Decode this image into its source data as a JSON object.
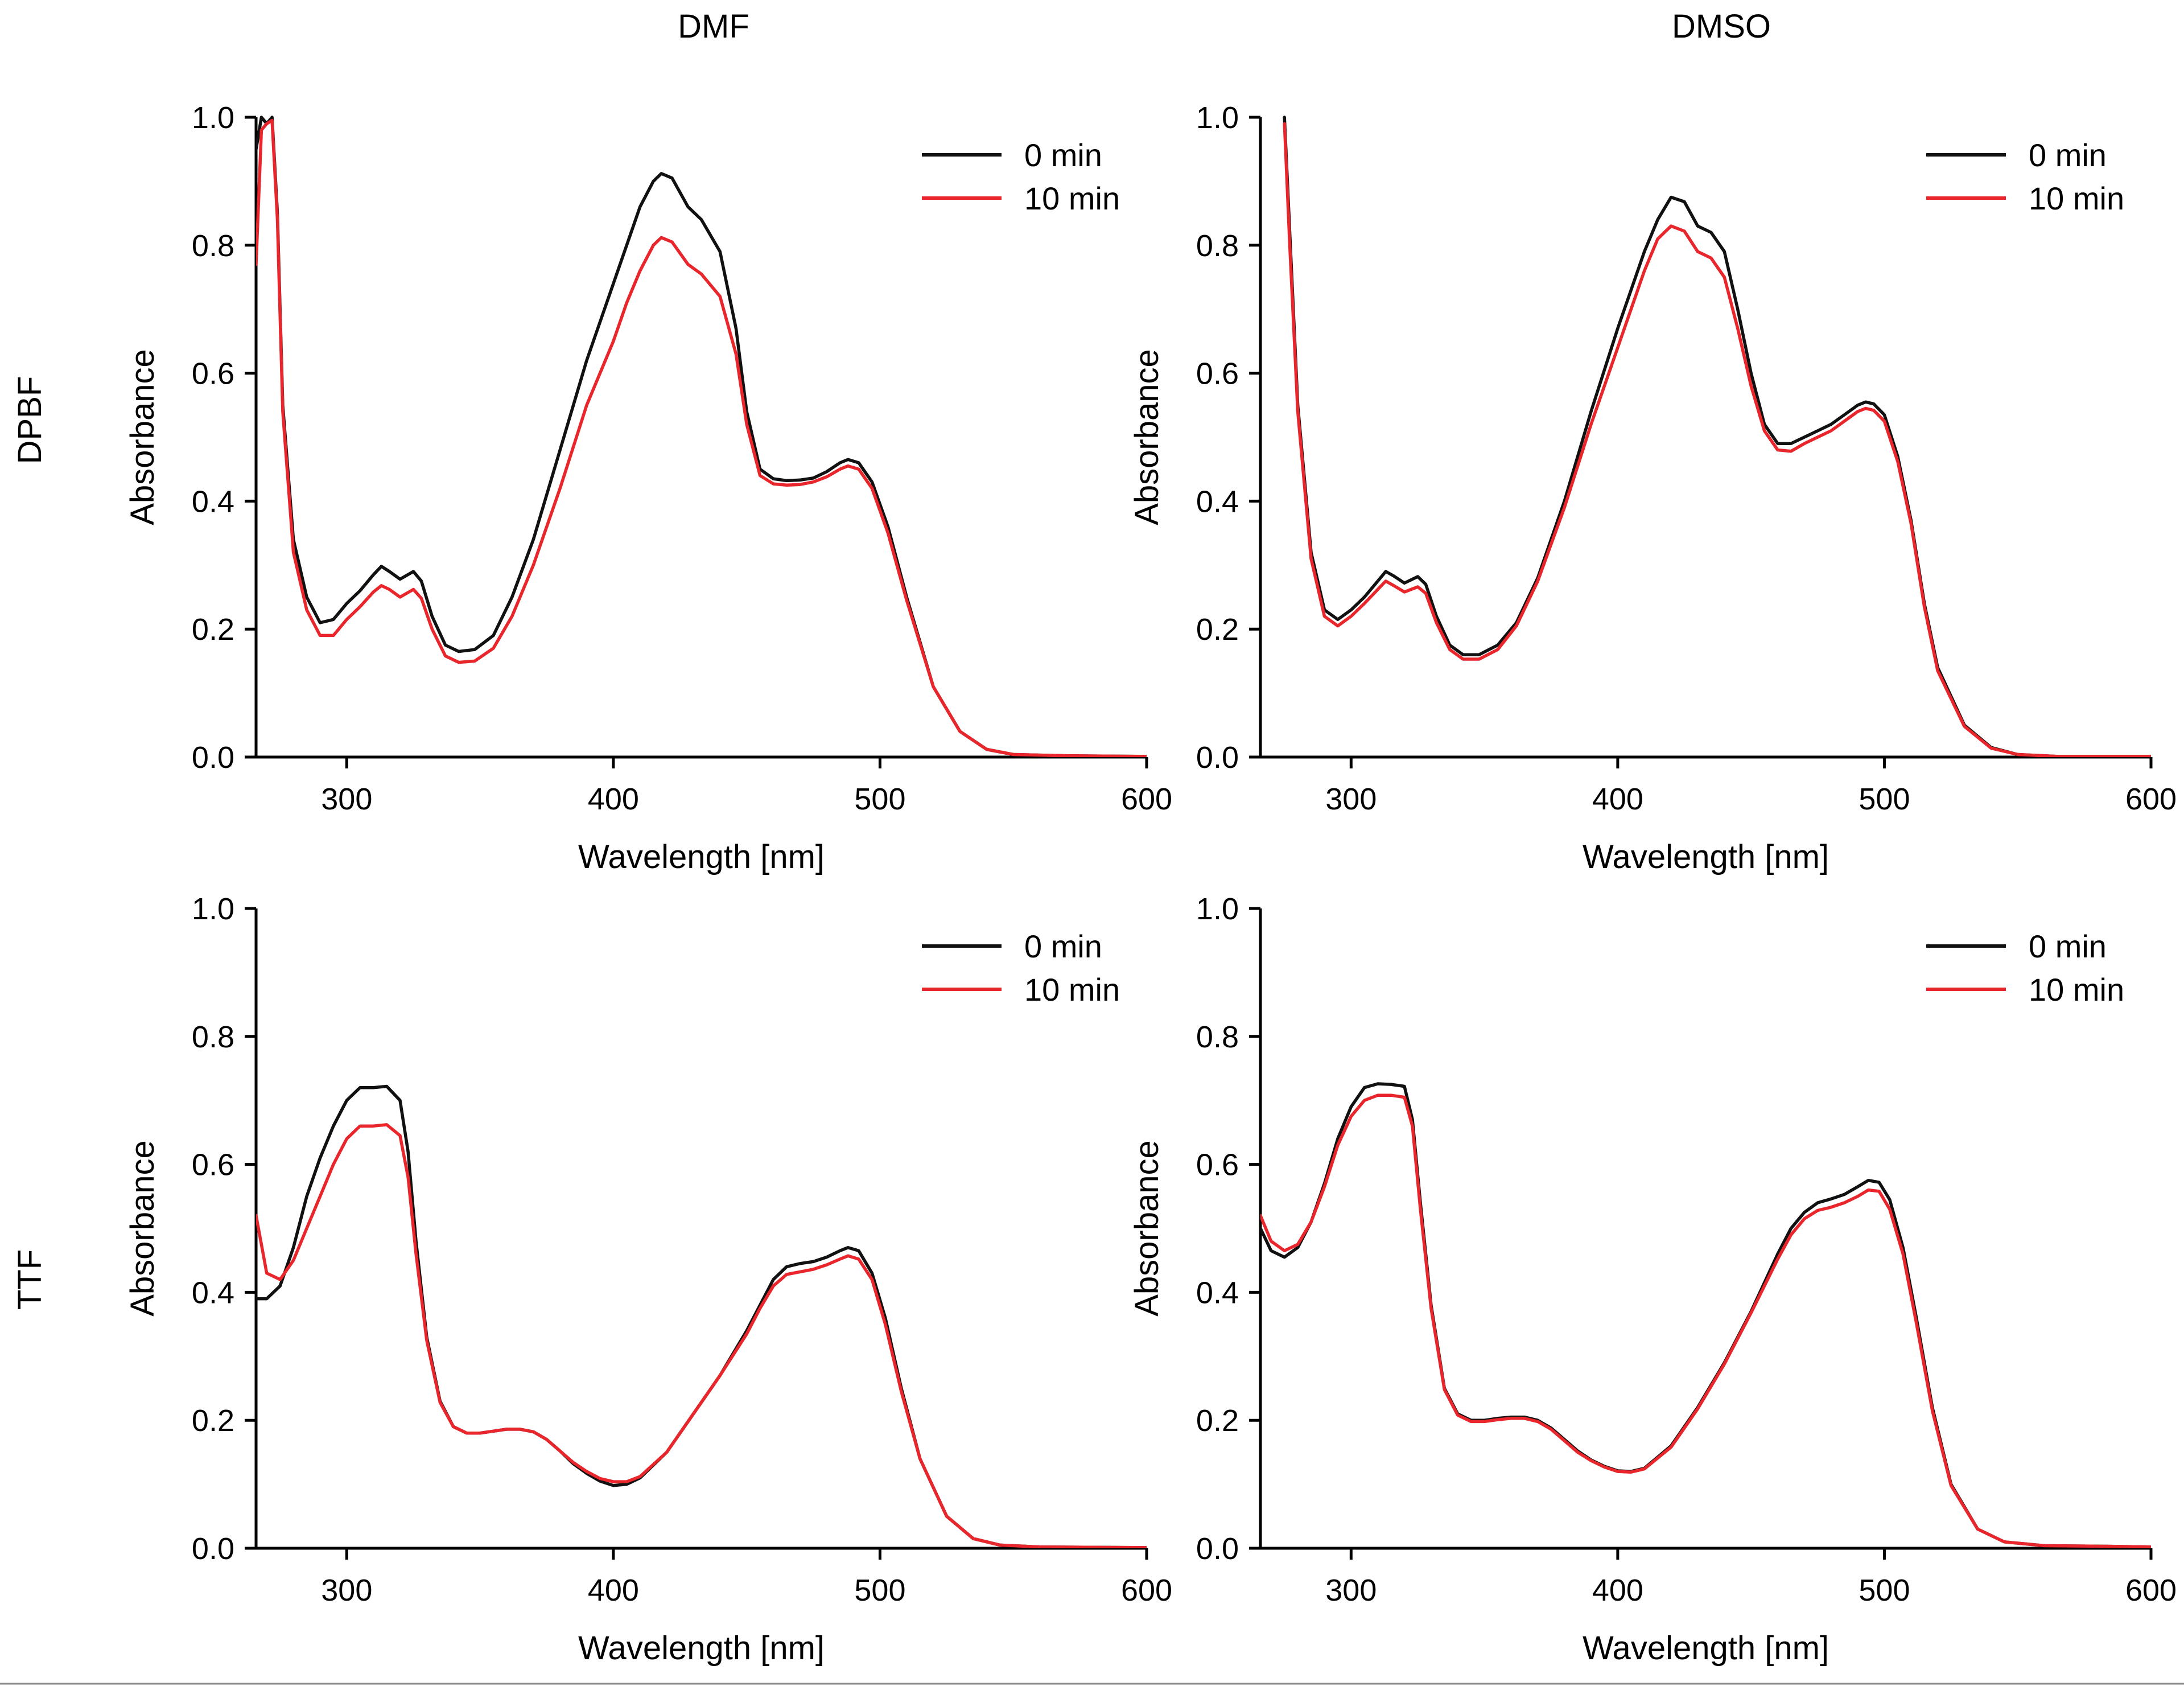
{
  "figure": {
    "column_titles": [
      "DMF",
      "DMSO"
    ],
    "row_titles": [
      "DPBF",
      "TTF"
    ],
    "series_colors": {
      "0 min": "#111111",
      "10 min": "#e8262b"
    }
  },
  "chart_data": [
    {
      "type": "line",
      "row": "DPBF",
      "column": "DMF",
      "xlabel": "Wavelength [nm]",
      "ylabel": "Absorbance",
      "xlim": [
        266,
        600
      ],
      "ylim": [
        0.0,
        1.0
      ],
      "xticks": [
        300,
        400,
        500,
        600
      ],
      "xtick_labels": [
        "300",
        "400",
        "500",
        "600"
      ],
      "yticks": [
        0.0,
        0.2,
        0.4,
        0.6,
        0.8,
        1.0
      ],
      "ytick_labels": [
        "0.0",
        "0.2",
        "0.4",
        "0.6",
        "0.8",
        "1.0"
      ],
      "legend": [
        "0 min",
        "10 min"
      ],
      "legend_position": "top-right",
      "series": [
        {
          "name": "0 min",
          "color": "#111111",
          "x": [
            266,
            268,
            270,
            272,
            274,
            276,
            280,
            285,
            290,
            295,
            300,
            305,
            310,
            313,
            316,
            320,
            325,
            328,
            332,
            337,
            342,
            348,
            355,
            362,
            370,
            380,
            390,
            400,
            405,
            410,
            415,
            418,
            422,
            428,
            433,
            440,
            446,
            450,
            455,
            460,
            465,
            470,
            475,
            480,
            485,
            488,
            492,
            497,
            503,
            510,
            520,
            530,
            540,
            550,
            570,
            600
          ],
          "y": [
            0.95,
            1.0,
            0.99,
            1.0,
            0.85,
            0.55,
            0.34,
            0.25,
            0.21,
            0.215,
            0.24,
            0.26,
            0.285,
            0.298,
            0.29,
            0.278,
            0.29,
            0.275,
            0.22,
            0.175,
            0.165,
            0.168,
            0.19,
            0.25,
            0.34,
            0.48,
            0.62,
            0.74,
            0.8,
            0.86,
            0.9,
            0.912,
            0.905,
            0.86,
            0.84,
            0.79,
            0.67,
            0.54,
            0.45,
            0.435,
            0.432,
            0.433,
            0.436,
            0.446,
            0.46,
            0.465,
            0.46,
            0.43,
            0.36,
            0.25,
            0.11,
            0.04,
            0.012,
            0.004,
            0.002,
            0.001
          ]
        },
        {
          "name": "10 min",
          "color": "#e8262b",
          "x": [
            266,
            268,
            270,
            272,
            274,
            276,
            280,
            285,
            290,
            295,
            300,
            305,
            310,
            313,
            316,
            320,
            325,
            328,
            332,
            337,
            342,
            348,
            355,
            362,
            370,
            380,
            390,
            400,
            405,
            410,
            415,
            418,
            422,
            428,
            433,
            440,
            446,
            450,
            455,
            460,
            465,
            470,
            475,
            480,
            485,
            488,
            492,
            497,
            503,
            510,
            520,
            530,
            540,
            550,
            570,
            600
          ],
          "y": [
            0.77,
            0.98,
            0.99,
            0.995,
            0.84,
            0.54,
            0.32,
            0.23,
            0.19,
            0.19,
            0.215,
            0.235,
            0.258,
            0.268,
            0.262,
            0.25,
            0.262,
            0.248,
            0.2,
            0.158,
            0.148,
            0.15,
            0.17,
            0.22,
            0.3,
            0.42,
            0.55,
            0.65,
            0.71,
            0.76,
            0.8,
            0.812,
            0.805,
            0.77,
            0.755,
            0.72,
            0.63,
            0.52,
            0.44,
            0.427,
            0.425,
            0.426,
            0.43,
            0.438,
            0.45,
            0.455,
            0.45,
            0.42,
            0.35,
            0.245,
            0.11,
            0.04,
            0.012,
            0.004,
            0.002,
            0.001
          ]
        }
      ]
    },
    {
      "type": "line",
      "row": "DPBF",
      "column": "DMSO",
      "xlabel": "Wavelength [nm]",
      "ylabel": "Absorbance",
      "xlim": [
        266,
        600
      ],
      "ylim": [
        0.0,
        1.0
      ],
      "xticks": [
        300,
        400,
        500,
        600
      ],
      "xtick_labels": [
        "300",
        "400",
        "500",
        "600"
      ],
      "yticks": [
        0.0,
        0.2,
        0.4,
        0.6,
        0.8,
        1.0
      ],
      "ytick_labels": [
        "0.0",
        "0.2",
        "0.4",
        "0.6",
        "0.8",
        "1.0"
      ],
      "legend": [
        "0 min",
        "10 min"
      ],
      "legend_position": "top-right",
      "series": [
        {
          "name": "0 min",
          "color": "#111111",
          "x": [
            275,
            277,
            280,
            285,
            290,
            295,
            300,
            305,
            310,
            313,
            316,
            320,
            325,
            328,
            332,
            337,
            342,
            348,
            355,
            362,
            370,
            380,
            390,
            400,
            405,
            410,
            415,
            420,
            425,
            430,
            435,
            440,
            445,
            450,
            455,
            460,
            465,
            470,
            475,
            480,
            485,
            490,
            493,
            496,
            500,
            505,
            510,
            515,
            520,
            530,
            540,
            550,
            565,
            600
          ],
          "y": [
            1.0,
            0.82,
            0.55,
            0.32,
            0.23,
            0.215,
            0.23,
            0.25,
            0.275,
            0.29,
            0.283,
            0.272,
            0.282,
            0.27,
            0.22,
            0.175,
            0.16,
            0.16,
            0.175,
            0.21,
            0.28,
            0.4,
            0.54,
            0.67,
            0.73,
            0.79,
            0.84,
            0.875,
            0.868,
            0.83,
            0.82,
            0.79,
            0.7,
            0.6,
            0.52,
            0.49,
            0.49,
            0.5,
            0.51,
            0.52,
            0.535,
            0.55,
            0.555,
            0.552,
            0.535,
            0.47,
            0.37,
            0.24,
            0.14,
            0.05,
            0.015,
            0.004,
            0.001,
            0.001
          ]
        },
        {
          "name": "10 min",
          "color": "#e8262b",
          "x": [
            275,
            277,
            280,
            285,
            290,
            295,
            300,
            305,
            310,
            313,
            316,
            320,
            325,
            328,
            332,
            337,
            342,
            348,
            355,
            362,
            370,
            380,
            390,
            400,
            405,
            410,
            415,
            420,
            425,
            430,
            435,
            440,
            445,
            450,
            455,
            460,
            465,
            470,
            475,
            480,
            485,
            490,
            493,
            496,
            500,
            505,
            510,
            515,
            520,
            530,
            540,
            550,
            565,
            600
          ],
          "y": [
            0.99,
            0.8,
            0.54,
            0.31,
            0.22,
            0.205,
            0.22,
            0.24,
            0.262,
            0.275,
            0.268,
            0.258,
            0.266,
            0.256,
            0.21,
            0.168,
            0.153,
            0.153,
            0.168,
            0.205,
            0.275,
            0.39,
            0.52,
            0.64,
            0.7,
            0.76,
            0.81,
            0.83,
            0.822,
            0.79,
            0.78,
            0.75,
            0.67,
            0.58,
            0.51,
            0.48,
            0.478,
            0.49,
            0.5,
            0.51,
            0.525,
            0.54,
            0.545,
            0.542,
            0.525,
            0.462,
            0.365,
            0.235,
            0.135,
            0.048,
            0.014,
            0.004,
            0.001,
            0.001
          ]
        }
      ]
    },
    {
      "type": "line",
      "row": "TTF",
      "column": "DMF",
      "xlabel": "Wavelength [nm]",
      "ylabel": "Absorbance",
      "xlim": [
        266,
        600
      ],
      "ylim": [
        0.0,
        1.0
      ],
      "xticks": [
        300,
        400,
        500,
        600
      ],
      "xtick_labels": [
        "300",
        "400",
        "500",
        "600"
      ],
      "yticks": [
        0.0,
        0.2,
        0.4,
        0.6,
        0.8,
        1.0
      ],
      "ytick_labels": [
        "0.0",
        "0.2",
        "0.4",
        "0.6",
        "0.8",
        "1.0"
      ],
      "legend": [
        "0 min",
        "10 min"
      ],
      "legend_position": "top-right",
      "series": [
        {
          "name": "0 min",
          "color": "#111111",
          "x": [
            266,
            270,
            275,
            280,
            285,
            290,
            295,
            300,
            305,
            310,
            315,
            320,
            323,
            326,
            330,
            335,
            340,
            345,
            350,
            355,
            360,
            365,
            370,
            375,
            380,
            385,
            390,
            395,
            400,
            405,
            410,
            420,
            430,
            440,
            450,
            455,
            460,
            465,
            470,
            475,
            480,
            485,
            488,
            492,
            497,
            502,
            508,
            515,
            525,
            535,
            545,
            560,
            600
          ],
          "y": [
            0.39,
            0.39,
            0.41,
            0.47,
            0.55,
            0.61,
            0.66,
            0.7,
            0.72,
            0.72,
            0.722,
            0.7,
            0.62,
            0.48,
            0.33,
            0.23,
            0.19,
            0.18,
            0.18,
            0.183,
            0.186,
            0.186,
            0.182,
            0.17,
            0.152,
            0.132,
            0.117,
            0.105,
            0.098,
            0.1,
            0.11,
            0.15,
            0.21,
            0.27,
            0.34,
            0.38,
            0.42,
            0.44,
            0.445,
            0.448,
            0.455,
            0.465,
            0.47,
            0.465,
            0.43,
            0.36,
            0.25,
            0.14,
            0.05,
            0.015,
            0.005,
            0.002,
            0.001
          ]
        },
        {
          "name": "10 min",
          "color": "#e8262b",
          "x": [
            266,
            270,
            275,
            280,
            285,
            290,
            295,
            300,
            305,
            310,
            315,
            320,
            323,
            326,
            330,
            335,
            340,
            345,
            350,
            355,
            360,
            365,
            370,
            375,
            380,
            385,
            390,
            395,
            400,
            405,
            410,
            420,
            430,
            440,
            450,
            455,
            460,
            465,
            470,
            475,
            480,
            485,
            488,
            492,
            497,
            502,
            508,
            515,
            525,
            535,
            545,
            560,
            600
          ],
          "y": [
            0.52,
            0.43,
            0.42,
            0.45,
            0.5,
            0.55,
            0.6,
            0.64,
            0.66,
            0.66,
            0.662,
            0.645,
            0.58,
            0.46,
            0.325,
            0.228,
            0.19,
            0.18,
            0.18,
            0.183,
            0.186,
            0.186,
            0.182,
            0.17,
            0.152,
            0.134,
            0.12,
            0.109,
            0.104,
            0.104,
            0.112,
            0.15,
            0.21,
            0.27,
            0.335,
            0.375,
            0.41,
            0.428,
            0.432,
            0.436,
            0.443,
            0.452,
            0.457,
            0.452,
            0.42,
            0.35,
            0.245,
            0.14,
            0.05,
            0.015,
            0.005,
            0.002,
            0.001
          ]
        }
      ]
    },
    {
      "type": "line",
      "row": "TTF",
      "column": "DMSO",
      "xlabel": "Wavelength [nm]",
      "ylabel": "Absorbance",
      "xlim": [
        266,
        600
      ],
      "ylim": [
        0.0,
        1.0
      ],
      "xticks": [
        300,
        400,
        500,
        600
      ],
      "xtick_labels": [
        "300",
        "400",
        "500",
        "600"
      ],
      "yticks": [
        0.0,
        0.2,
        0.4,
        0.6,
        0.8,
        1.0
      ],
      "ytick_labels": [
        "0.0",
        "0.2",
        "0.4",
        "0.6",
        "0.8",
        "1.0"
      ],
      "legend": [
        "0 min",
        "10 min"
      ],
      "legend_position": "top-right",
      "series": [
        {
          "name": "0 min",
          "color": "#111111",
          "x": [
            266,
            270,
            275,
            280,
            285,
            290,
            295,
            300,
            305,
            310,
            315,
            320,
            323,
            326,
            330,
            335,
            340,
            345,
            350,
            355,
            360,
            365,
            370,
            375,
            380,
            385,
            390,
            395,
            400,
            405,
            410,
            420,
            430,
            440,
            450,
            460,
            465,
            470,
            475,
            480,
            485,
            490,
            494,
            498,
            502,
            507,
            512,
            518,
            525,
            535,
            545,
            560,
            585,
            600
          ],
          "y": [
            0.5,
            0.465,
            0.455,
            0.47,
            0.51,
            0.57,
            0.64,
            0.69,
            0.72,
            0.726,
            0.725,
            0.722,
            0.67,
            0.54,
            0.38,
            0.25,
            0.21,
            0.2,
            0.2,
            0.203,
            0.205,
            0.205,
            0.2,
            0.188,
            0.17,
            0.152,
            0.138,
            0.128,
            0.121,
            0.12,
            0.125,
            0.16,
            0.22,
            0.29,
            0.37,
            0.46,
            0.5,
            0.525,
            0.54,
            0.546,
            0.553,
            0.565,
            0.575,
            0.572,
            0.545,
            0.47,
            0.36,
            0.22,
            0.1,
            0.03,
            0.01,
            0.004,
            0.003,
            0.002
          ]
        },
        {
          "name": "10 min",
          "color": "#e8262b",
          "x": [
            266,
            270,
            275,
            280,
            285,
            290,
            295,
            300,
            305,
            310,
            315,
            320,
            323,
            326,
            330,
            335,
            340,
            345,
            350,
            355,
            360,
            365,
            370,
            375,
            380,
            385,
            390,
            395,
            400,
            405,
            410,
            420,
            430,
            440,
            450,
            460,
            465,
            470,
            475,
            480,
            485,
            490,
            494,
            498,
            502,
            507,
            512,
            518,
            525,
            535,
            545,
            560,
            585,
            600
          ],
          "y": [
            0.52,
            0.48,
            0.465,
            0.475,
            0.51,
            0.565,
            0.63,
            0.675,
            0.7,
            0.708,
            0.708,
            0.705,
            0.66,
            0.53,
            0.375,
            0.248,
            0.208,
            0.198,
            0.198,
            0.201,
            0.203,
            0.203,
            0.198,
            0.186,
            0.168,
            0.15,
            0.137,
            0.127,
            0.12,
            0.119,
            0.124,
            0.158,
            0.218,
            0.288,
            0.368,
            0.452,
            0.49,
            0.515,
            0.528,
            0.533,
            0.54,
            0.55,
            0.56,
            0.558,
            0.53,
            0.46,
            0.352,
            0.215,
            0.098,
            0.03,
            0.01,
            0.004,
            0.003,
            0.002
          ]
        }
      ]
    }
  ]
}
